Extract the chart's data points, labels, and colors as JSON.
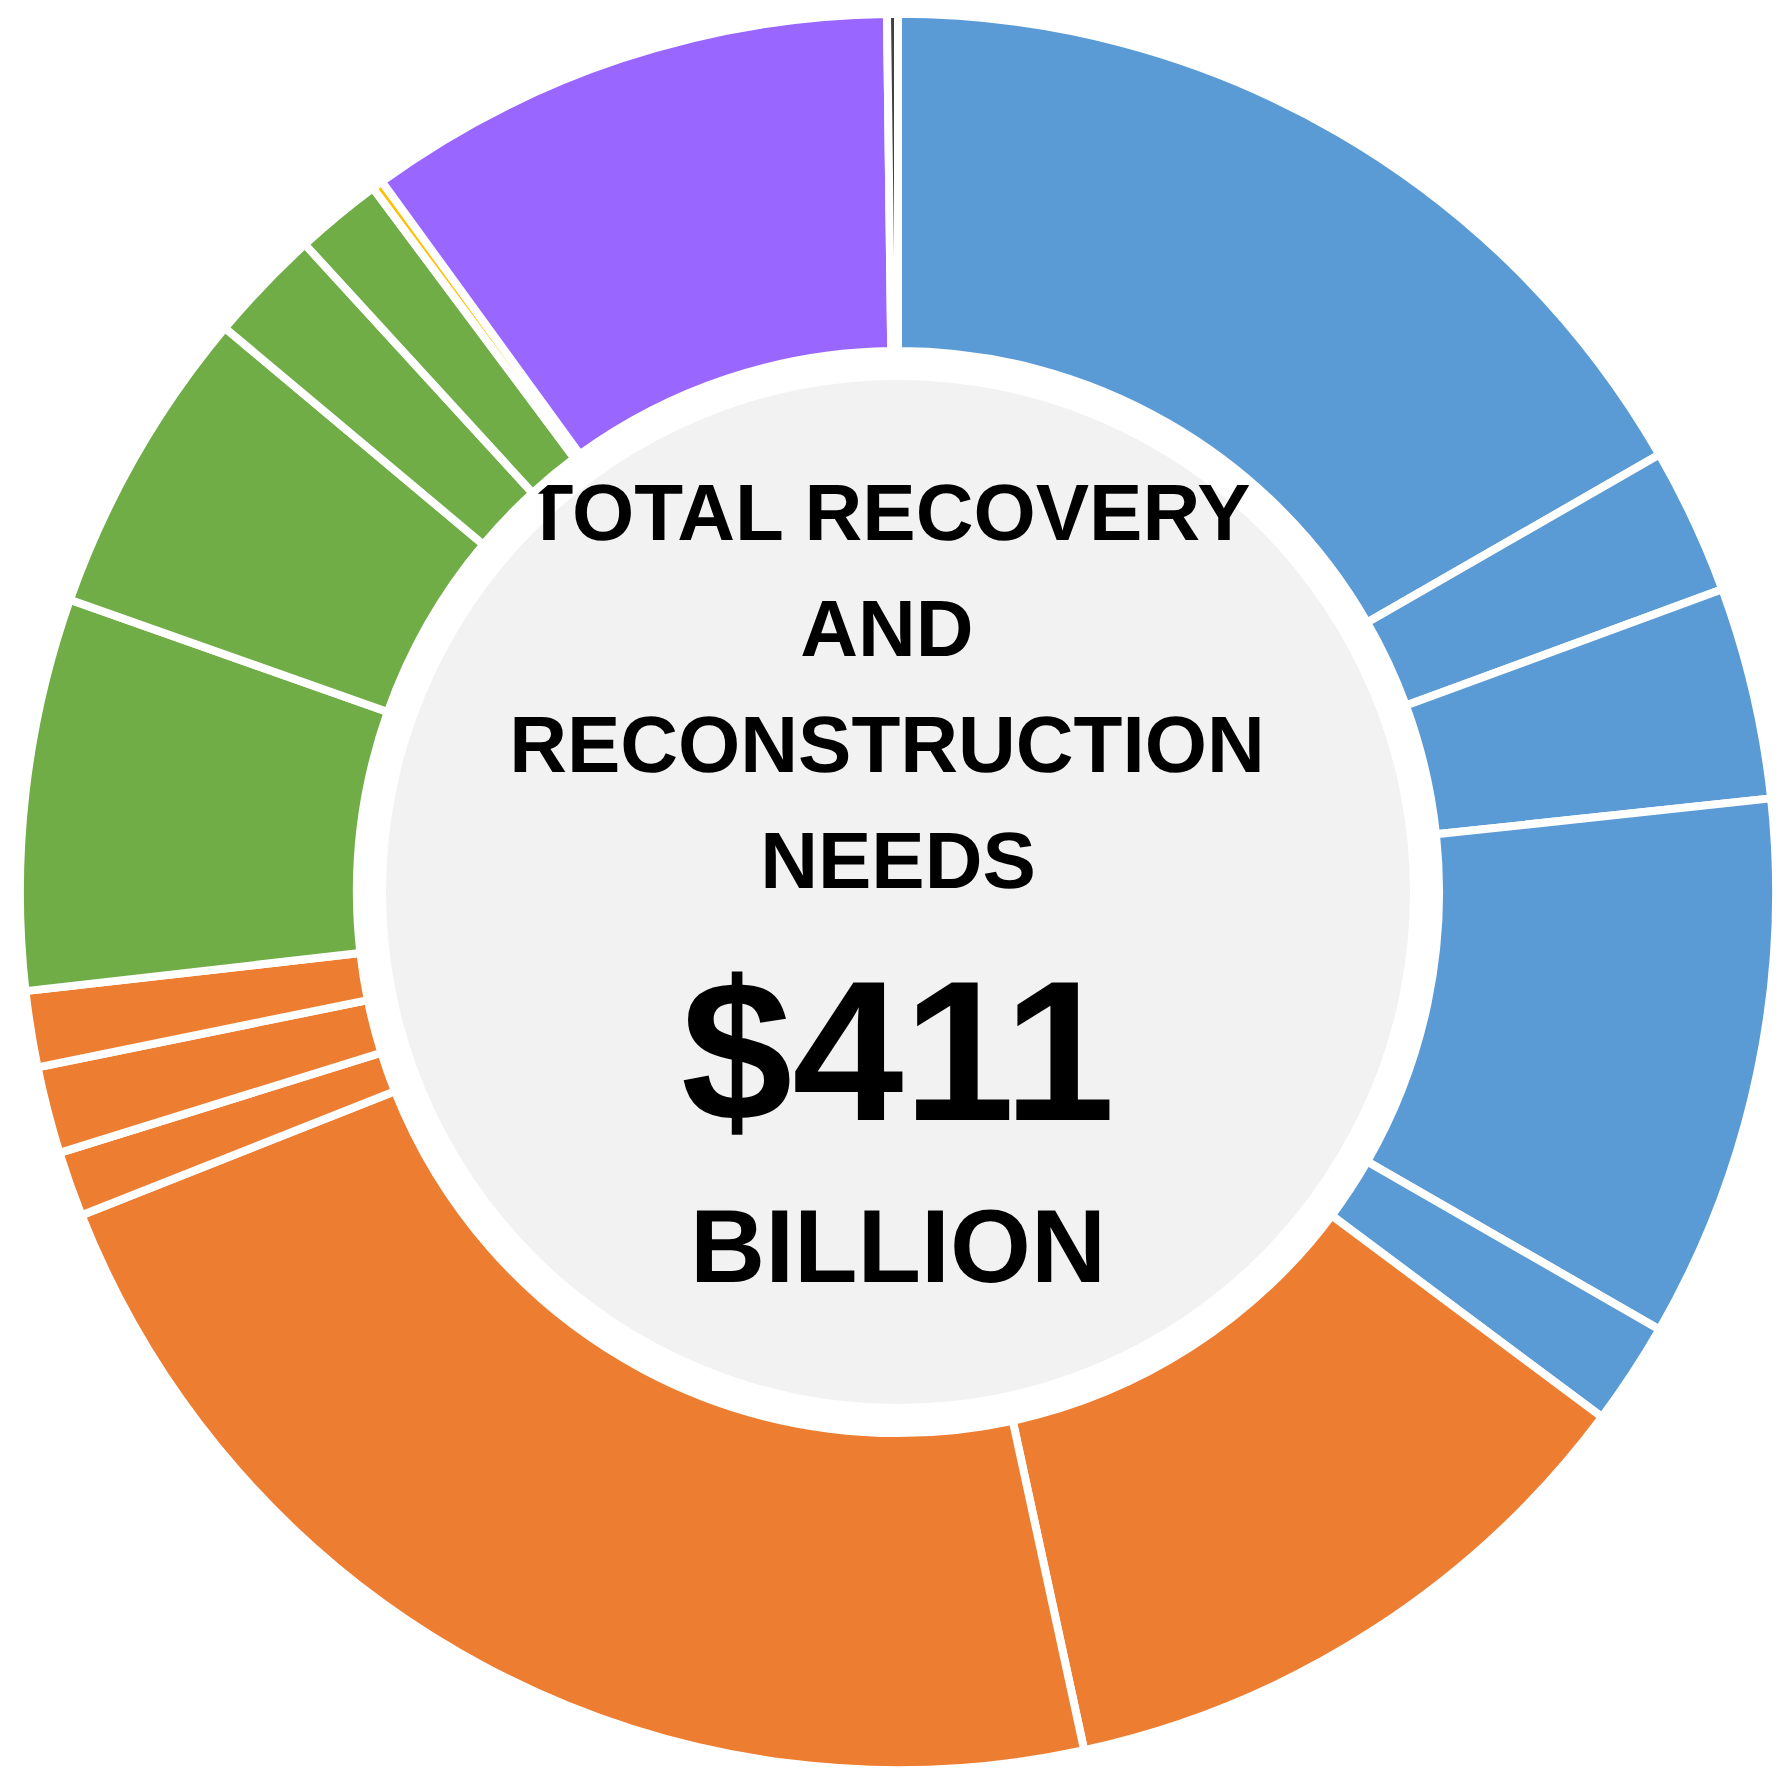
{
  "chart_data": {
    "type": "donut",
    "title": "TOTAL RECOVERY AND RECONSTRUCTION NEEDS",
    "annotations": [
      "$411",
      "BILLION"
    ],
    "categories": [
      null,
      null,
      null,
      null,
      null,
      null,
      null,
      null,
      null,
      null,
      null,
      null,
      null,
      null,
      null,
      null,
      null
    ],
    "values": [
      16.7,
      2.7,
      3.9,
      10.0,
      1.9,
      11.4,
      22.4,
      1.2,
      1.6,
      1.4,
      7.2,
      5.7,
      2.1,
      1.6,
      0.2,
      9.8,
      0.2
    ],
    "colors": [
      "#5b9bd5",
      "#5b9bd5",
      "#5b9bd5",
      "#5b9bd5",
      "#5b9bd5",
      "#ed7d31",
      "#ed7d31",
      "#ed7d31",
      "#ed7d31",
      "#ed7d31",
      "#70ad47",
      "#70ad47",
      "#70ad47",
      "#70ad47",
      "#ffc000",
      "#9966ff",
      "#404040"
    ]
  }
}
